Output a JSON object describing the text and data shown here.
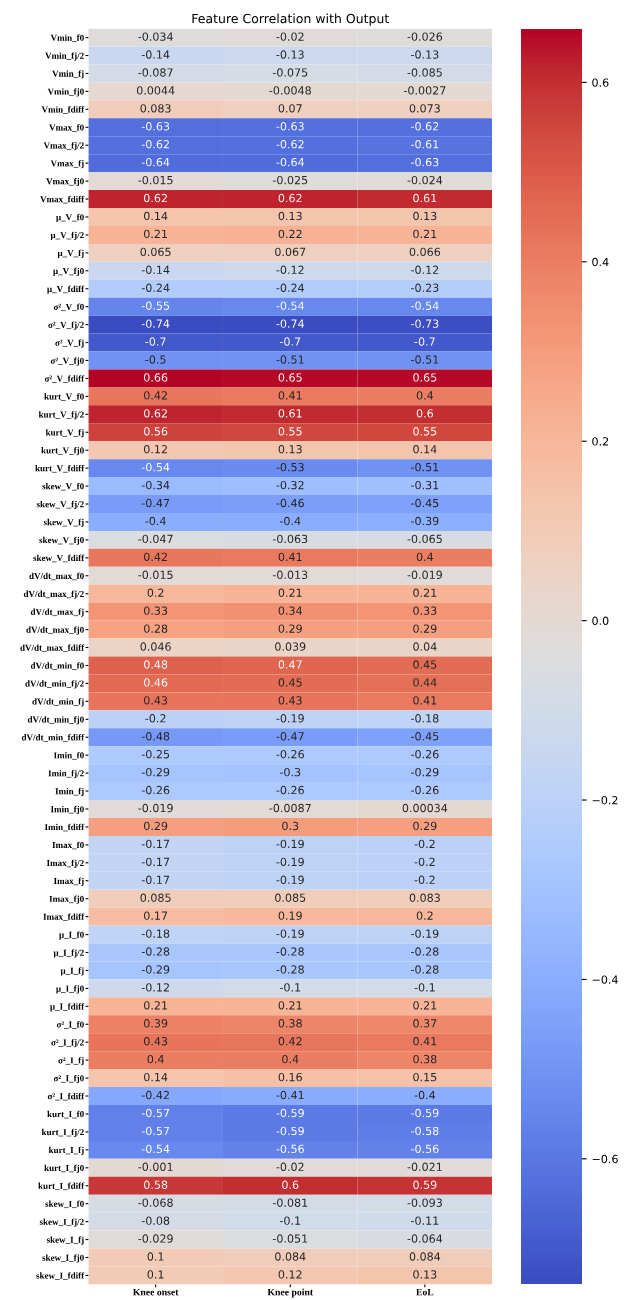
{
  "chart_data": {
    "type": "heatmap",
    "title": "Feature Correlation with Output",
    "categories": [
      "Knee onset",
      "Knee point",
      "EoL"
    ],
    "y_categories": [
      "Vmin_f0",
      "Vmin_fj/2",
      "Vmin_fj",
      "Vmin_fj0",
      "Vmin_fdiff",
      "Vmax_f0",
      "Vmax_fj/2",
      "Vmax_fj",
      "Vmax_fj0",
      "Vmax_fdiff",
      "μ_V_f0",
      "μ_V_fj/2",
      "μ_V_fj",
      "μ_V_fj0",
      "μ_V_fdiff",
      "σ²_V_f0",
      "σ²_V_fj/2",
      "σ²_V_fj",
      "σ²_V_fj0",
      "σ²_V_fdiff",
      "kurt_V_f0",
      "kurt_V_fj/2",
      "kurt_V_fj",
      "kurt_V_fj0",
      "kurt_V_fdiff",
      "skew_V_f0",
      "skew_V_fj/2",
      "skew_V_fj",
      "skew_V_fj0",
      "skew_V_fdiff",
      "dV/dt_max_f0",
      "dV/dt_max_fj/2",
      "dV/dt_max_fj",
      "dV/dt_max_fj0",
      "dV/dt_max_fdiff",
      "dV/dt_min_f0",
      "dV/dt_min_fj/2",
      "dV/dt_min_fj",
      "dV/dt_min_fj0",
      "dV/dt_min_fdiff",
      "Imin_f0",
      "Imin_fj/2",
      "Imin_fj",
      "Imin_fj0",
      "Imin_fdiff",
      "Imax_f0",
      "Imax_fj/2",
      "Imax_fj",
      "Imax_fj0",
      "Imax_fdiff",
      "μ_I_f0",
      "μ_I_fj/2",
      "μ_I_fj",
      "μ_I_fj0",
      "μ_I_fdiff",
      "σ²_I_f0",
      "σ²_I_fj/2",
      "σ²_I_fj",
      "σ²_I_fj0",
      "σ²_I_fdiff",
      "kurt_I_f0",
      "kurt_I_fj/2",
      "kurt_I_fj",
      "kurt_I_fj0",
      "kurt_I_fdiff",
      "skew_I_f0",
      "skew_I_fj/2",
      "skew_I_fj",
      "skew_I_fj0",
      "skew_I_fdiff"
    ],
    "cells": [
      [
        -0.034,
        -0.02,
        -0.026
      ],
      [
        -0.14,
        -0.13,
        -0.13
      ],
      [
        -0.087,
        -0.075,
        -0.085
      ],
      [
        0.0044,
        -0.0048,
        -0.0027
      ],
      [
        0.083,
        0.07,
        0.073
      ],
      [
        -0.63,
        -0.63,
        -0.62
      ],
      [
        -0.62,
        -0.62,
        -0.61
      ],
      [
        -0.64,
        -0.64,
        -0.63
      ],
      [
        -0.015,
        -0.025,
        -0.024
      ],
      [
        0.62,
        0.62,
        0.61
      ],
      [
        0.14,
        0.13,
        0.13
      ],
      [
        0.21,
        0.22,
        0.21
      ],
      [
        0.065,
        0.067,
        0.066
      ],
      [
        -0.14,
        -0.12,
        -0.12
      ],
      [
        -0.24,
        -0.24,
        -0.23
      ],
      [
        -0.55,
        -0.54,
        -0.54
      ],
      [
        -0.74,
        -0.74,
        -0.73
      ],
      [
        -0.7,
        -0.7,
        -0.7
      ],
      [
        -0.5,
        -0.51,
        -0.51
      ],
      [
        0.66,
        0.65,
        0.65
      ],
      [
        0.42,
        0.41,
        0.4
      ],
      [
        0.62,
        0.61,
        0.6
      ],
      [
        0.56,
        0.55,
        0.55
      ],
      [
        0.12,
        0.13,
        0.14
      ],
      [
        -0.54,
        -0.53,
        -0.51
      ],
      [
        -0.34,
        -0.32,
        -0.31
      ],
      [
        -0.47,
        -0.46,
        -0.45
      ],
      [
        -0.4,
        -0.4,
        -0.39
      ],
      [
        -0.047,
        -0.063,
        -0.065
      ],
      [
        0.42,
        0.41,
        0.4
      ],
      [
        -0.015,
        -0.013,
        -0.019
      ],
      [
        0.2,
        0.21,
        0.21
      ],
      [
        0.33,
        0.34,
        0.33
      ],
      [
        0.28,
        0.29,
        0.29
      ],
      [
        0.046,
        0.039,
        0.04
      ],
      [
        0.48,
        0.47,
        0.45
      ],
      [
        0.46,
        0.45,
        0.44
      ],
      [
        0.43,
        0.43,
        0.41
      ],
      [
        -0.2,
        -0.19,
        -0.18
      ],
      [
        -0.48,
        -0.47,
        -0.45
      ],
      [
        -0.25,
        -0.26,
        -0.26
      ],
      [
        -0.29,
        -0.3,
        -0.29
      ],
      [
        -0.26,
        -0.26,
        -0.26
      ],
      [
        -0.019,
        -0.0087,
        0.00034
      ],
      [
        0.29,
        0.3,
        0.29
      ],
      [
        -0.17,
        -0.19,
        -0.2
      ],
      [
        -0.17,
        -0.19,
        -0.2
      ],
      [
        -0.17,
        -0.19,
        -0.2
      ],
      [
        0.085,
        0.085,
        0.083
      ],
      [
        0.17,
        0.19,
        0.2
      ],
      [
        -0.18,
        -0.19,
        -0.19
      ],
      [
        -0.28,
        -0.28,
        -0.28
      ],
      [
        -0.29,
        -0.28,
        -0.28
      ],
      [
        -0.12,
        -0.1,
        -0.1
      ],
      [
        0.21,
        0.21,
        0.21
      ],
      [
        0.39,
        0.38,
        0.37
      ],
      [
        0.43,
        0.42,
        0.41
      ],
      [
        0.4,
        0.4,
        0.38
      ],
      [
        0.14,
        0.16,
        0.15
      ],
      [
        -0.42,
        -0.41,
        -0.4
      ],
      [
        -0.57,
        -0.59,
        -0.59
      ],
      [
        -0.57,
        -0.59,
        -0.58
      ],
      [
        -0.54,
        -0.56,
        -0.56
      ],
      [
        -0.001,
        -0.02,
        -0.021
      ],
      [
        0.58,
        0.6,
        0.59
      ],
      [
        -0.068,
        -0.081,
        -0.093
      ],
      [
        -0.08,
        -0.1,
        -0.11
      ],
      [
        -0.029,
        -0.051,
        -0.064
      ],
      [
        0.1,
        0.084,
        0.084
      ],
      [
        0.1,
        0.12,
        0.13
      ]
    ],
    "clim": [
      -0.74,
      0.66
    ],
    "cticks": [
      -0.6,
      -0.4,
      -0.2,
      {
        "value": 0,
        "label": "0.0"
      },
      0.2,
      0.4,
      0.6
    ],
    "data_labels": true
  }
}
